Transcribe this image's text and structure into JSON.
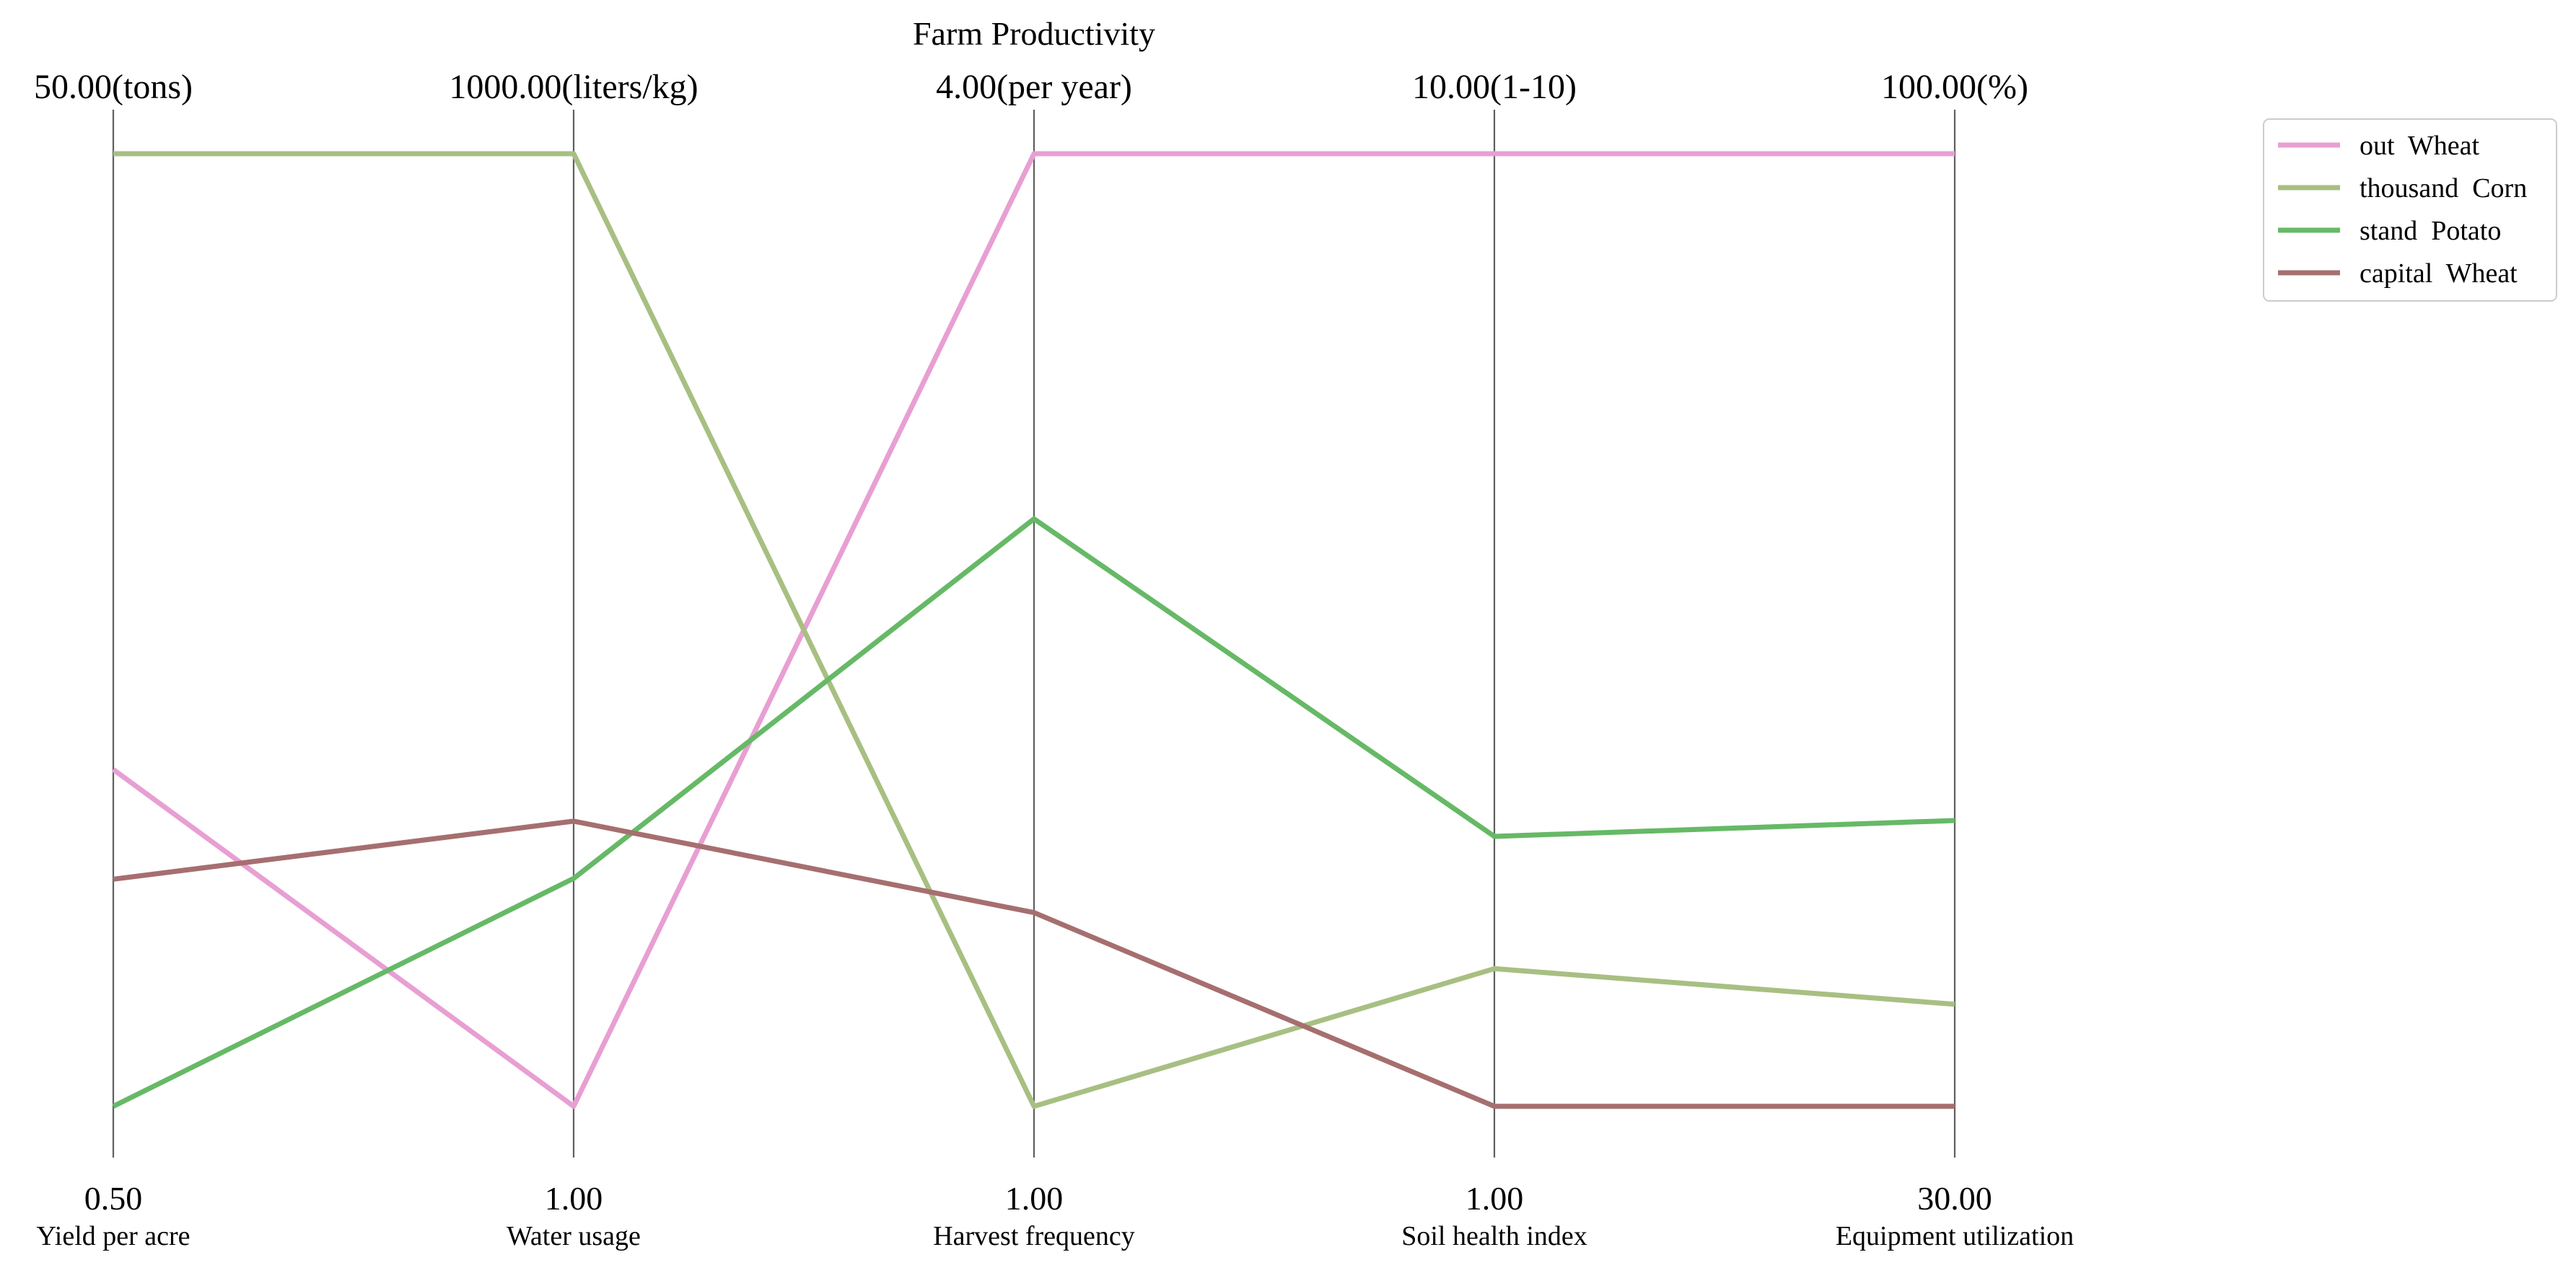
{
  "chart_data": {
    "type": "parallel-coordinates",
    "title": "Farm Productivity",
    "axes": [
      {
        "label": "Yield per acre",
        "unit": "tons",
        "min": 0.5,
        "max": 50.0,
        "min_label": "0.50",
        "max_label": "50.00(tons)"
      },
      {
        "label": "Water usage",
        "unit": "liters/kg",
        "min": 1.0,
        "max": 1000.0,
        "min_label": "1.00",
        "max_label": "1000.00(liters/kg)"
      },
      {
        "label": "Harvest frequency",
        "unit": "per year",
        "min": 1.0,
        "max": 4.0,
        "min_label": "1.00",
        "max_label": "4.00(per year)"
      },
      {
        "label": "Soil health index",
        "unit": "1-10",
        "min": 1.0,
        "max": 10.0,
        "min_label": "1.00",
        "max_label": "10.00(1-10)"
      },
      {
        "label": "Equipment utilization",
        "unit": "%",
        "min": 30.0,
        "max": 100.0,
        "min_label": "30.00",
        "max_label": "100.00(%)"
      }
    ],
    "series": [
      {
        "name": "out  Wheat",
        "color": "#e89fd3",
        "values": [
          18.0,
          1.0,
          4.0,
          10.0,
          100.0
        ]
      },
      {
        "name": "thousand  Corn",
        "color": "#a8bf82",
        "values": [
          50.0,
          1000.0,
          1.0,
          2.3,
          37.5
        ]
      },
      {
        "name": "stand  Potato",
        "color": "#66b966",
        "values": [
          0.5,
          240.0,
          2.85,
          3.55,
          51.0
        ]
      },
      {
        "name": "capital  Wheat",
        "color": "#a66f6f",
        "values": [
          12.3,
          300.0,
          1.61,
          1.0,
          30.0
        ]
      }
    ],
    "legend_position": "top-right",
    "grid": false
  }
}
